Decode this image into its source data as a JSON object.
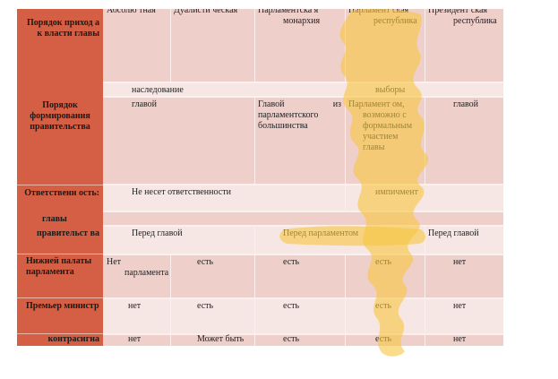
{
  "rows": {
    "row1": {
      "header": "Порядок приход а к власти главы",
      "cells": [
        "Абсолю тная",
        "Дуалисти ческая",
        "Парламентска я монархия",
        "Парламент ская республика",
        "Президент ская республика"
      ]
    },
    "row2": {
      "cells": [
        "наследование",
        "выборы"
      ]
    },
    "row3": {
      "header": "Порядок формирования правительства",
      "cells": [
        "главой",
        "Главой из парламентского большинства",
        "Парламент ом, возможно с формальным участием главы",
        "главой"
      ]
    },
    "row4": {
      "header": "Ответственн ость:",
      "cells": [
        "Не несет ответственности",
        "импичмент"
      ]
    },
    "row5": {
      "header": "главы"
    },
    "row6": {
      "header": "правительст ва",
      "cells": [
        "Перед главой",
        "Перед парламентом",
        "Перед главой"
      ]
    },
    "row7": {
      "header": "Нижней палаты парламента",
      "cells": [
        "Нет парламента",
        "есть",
        "есть",
        "есть",
        "нет"
      ]
    },
    "row8": {
      "header": "Премьер министр",
      "cells": [
        "нет",
        "есть",
        "есть",
        "есть",
        "нет"
      ]
    },
    "row9": {
      "header": "контрасигна",
      "cells": [
        "нет",
        "Может быть",
        "есть",
        "есть",
        "нет"
      ]
    }
  },
  "colors": {
    "header_bg": "#d45f44",
    "row_pink": "#efcfca",
    "row_light": "#f7e7e4",
    "highlighter": "#f7c640"
  }
}
